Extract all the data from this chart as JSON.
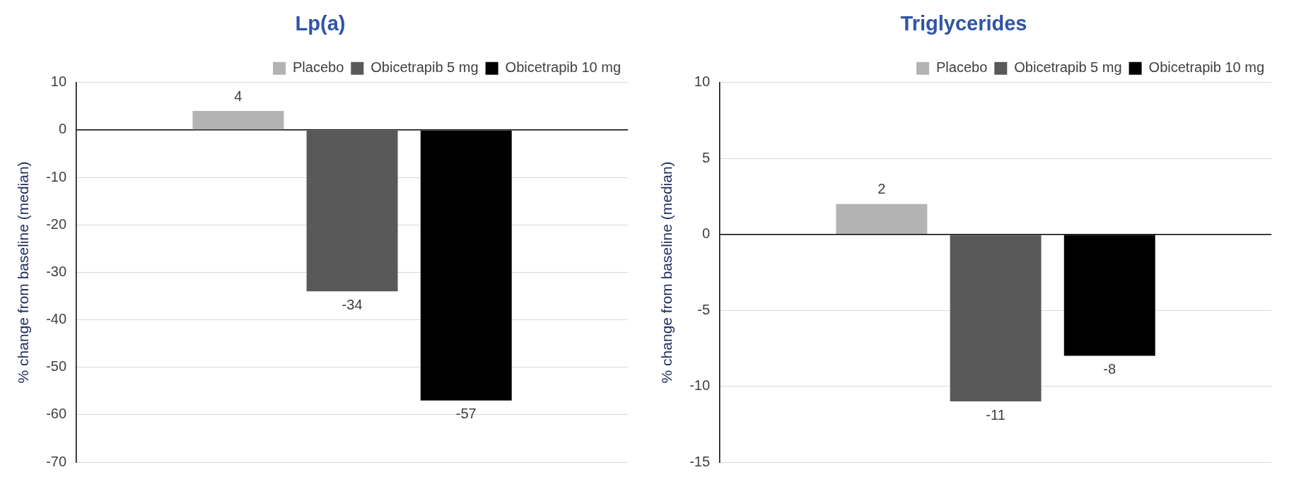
{
  "chart_data": [
    {
      "type": "bar",
      "title": "Lp(a)",
      "ylabel": "% change from baseline (median)",
      "categories": [
        null
      ],
      "series": [
        {
          "name": "Placebo",
          "color": "#b3b3b3",
          "values": [
            4
          ]
        },
        {
          "name": "Obicetrapib 5 mg",
          "color": "#595959",
          "values": [
            -34
          ]
        },
        {
          "name": "Obicetrapib 10 mg",
          "color": "#000000",
          "values": [
            -57
          ]
        }
      ],
      "ylim": [
        -70,
        10
      ],
      "yticks": [
        -70,
        -60,
        -50,
        -40,
        -30,
        -20,
        -10,
        0,
        10
      ],
      "grid": "y",
      "legend": "top",
      "data_labels": true
    },
    {
      "type": "bar",
      "title": "Triglycerides",
      "ylabel": "% change from baseline (median)",
      "categories": [
        null
      ],
      "series": [
        {
          "name": "Placebo",
          "color": "#b3b3b3",
          "values": [
            2
          ]
        },
        {
          "name": "Obicetrapib 5 mg",
          "color": "#595959",
          "values": [
            -11
          ]
        },
        {
          "name": "Obicetrapib 10 mg",
          "color": "#000000",
          "values": [
            -8
          ]
        }
      ],
      "ylim": [
        -15,
        10
      ],
      "yticks": [
        -15,
        -10,
        -5,
        0,
        5,
        10
      ],
      "grid": "y",
      "legend": "top",
      "data_labels": true
    }
  ]
}
